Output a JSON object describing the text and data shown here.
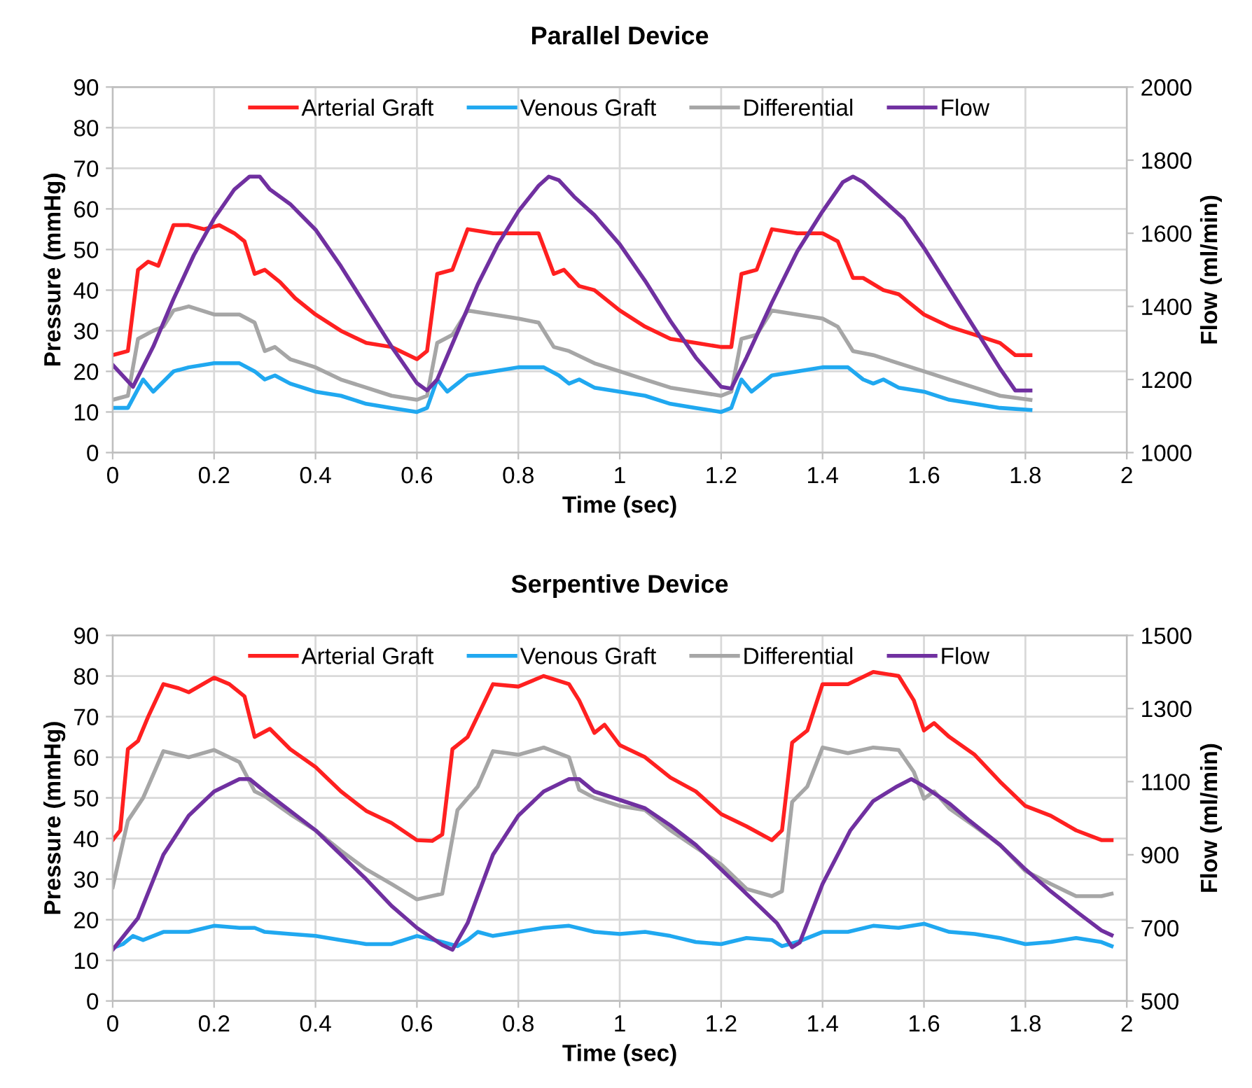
{
  "chart_data": [
    {
      "type": "line",
      "title": "Parallel Device",
      "xlabel": "Time (sec)",
      "ylabel": "Pressure (mmHg)",
      "y2label": "Flow (ml/min)",
      "xlim": [
        0,
        2
      ],
      "xticks": [
        0,
        0.2,
        0.4,
        0.6,
        0.8,
        1,
        1.2,
        1.4,
        1.6,
        1.8,
        2
      ],
      "ylim": [
        0,
        90
      ],
      "yticks": [
        0,
        10,
        20,
        30,
        40,
        50,
        60,
        70,
        80,
        90
      ],
      "y2lim": [
        1000,
        2000
      ],
      "y2ticks": [
        1000,
        1200,
        1400,
        1600,
        1800,
        2000
      ],
      "grid": true,
      "legend": "top",
      "marker": "none",
      "line_style": "solid",
      "series": [
        {
          "name": "Arterial Graft",
          "color": "#ff2020",
          "x": [
            0,
            0.03,
            0.05,
            0.07,
            0.09,
            0.12,
            0.15,
            0.18,
            0.21,
            0.24,
            0.26,
            0.28,
            0.3,
            0.33,
            0.36,
            0.4,
            0.45,
            0.5,
            0.55,
            0.6,
            0.62,
            0.64,
            0.67,
            0.7,
            0.75,
            0.8,
            0.84,
            0.87,
            0.89,
            0.92,
            0.95,
            1.0,
            1.05,
            1.1,
            1.15,
            1.2,
            1.22,
            1.24,
            1.27,
            1.3,
            1.35,
            1.4,
            1.43,
            1.46,
            1.48,
            1.52,
            1.55,
            1.6,
            1.65,
            1.7,
            1.75,
            1.78,
            1.81
          ],
          "values": [
            24,
            25,
            45,
            47,
            46,
            56,
            56,
            55,
            56,
            54,
            52,
            44,
            45,
            42,
            38,
            34,
            30,
            27,
            26,
            23,
            25,
            44,
            45,
            55,
            54,
            54,
            54,
            44,
            45,
            41,
            40,
            35,
            31,
            28,
            27,
            26,
            26,
            44,
            45,
            55,
            54,
            54,
            52,
            43,
            43,
            40,
            39,
            34,
            31,
            29,
            27,
            24,
            24
          ]
        },
        {
          "name": "Venous Graft",
          "color": "#20a8f0",
          "x": [
            0,
            0.03,
            0.06,
            0.08,
            0.12,
            0.15,
            0.2,
            0.25,
            0.28,
            0.3,
            0.32,
            0.35,
            0.4,
            0.45,
            0.5,
            0.55,
            0.6,
            0.62,
            0.64,
            0.66,
            0.7,
            0.75,
            0.8,
            0.85,
            0.88,
            0.9,
            0.92,
            0.95,
            1.0,
            1.05,
            1.1,
            1.15,
            1.2,
            1.22,
            1.24,
            1.26,
            1.3,
            1.35,
            1.4,
            1.45,
            1.48,
            1.5,
            1.52,
            1.55,
            1.6,
            1.65,
            1.7,
            1.75,
            1.81
          ],
          "values": [
            11,
            11,
            18,
            15,
            20,
            21,
            22,
            22,
            20,
            18,
            19,
            17,
            15,
            14,
            12,
            11,
            10,
            11,
            18,
            15,
            19,
            20,
            21,
            21,
            19,
            17,
            18,
            16,
            15,
            14,
            12,
            11,
            10,
            11,
            18,
            15,
            19,
            20,
            21,
            21,
            18,
            17,
            18,
            16,
            15,
            13,
            12,
            11,
            10.5
          ]
        },
        {
          "name": "Differential",
          "color": "#a6a6a6",
          "x": [
            0,
            0.03,
            0.05,
            0.08,
            0.1,
            0.12,
            0.15,
            0.2,
            0.25,
            0.28,
            0.3,
            0.32,
            0.35,
            0.4,
            0.45,
            0.5,
            0.55,
            0.6,
            0.62,
            0.64,
            0.67,
            0.7,
            0.75,
            0.8,
            0.84,
            0.87,
            0.9,
            0.95,
            1.0,
            1.05,
            1.1,
            1.15,
            1.2,
            1.22,
            1.24,
            1.27,
            1.3,
            1.35,
            1.4,
            1.43,
            1.46,
            1.5,
            1.55,
            1.6,
            1.65,
            1.7,
            1.75,
            1.81
          ],
          "values": [
            13,
            14,
            28,
            30,
            31,
            35,
            36,
            34,
            34,
            32,
            25,
            26,
            23,
            21,
            18,
            16,
            14,
            13,
            14,
            27,
            29,
            35,
            34,
            33,
            32,
            26,
            25,
            22,
            20,
            18,
            16,
            15,
            14,
            15,
            28,
            29,
            35,
            34,
            33,
            31,
            25,
            24,
            22,
            20,
            18,
            16,
            14,
            13
          ]
        },
        {
          "name": "Flow",
          "color": "#7030a0",
          "axis": "y2",
          "x": [
            0,
            0.04,
            0.08,
            0.12,
            0.16,
            0.2,
            0.24,
            0.27,
            0.29,
            0.31,
            0.35,
            0.4,
            0.45,
            0.5,
            0.55,
            0.6,
            0.62,
            0.64,
            0.68,
            0.72,
            0.76,
            0.8,
            0.84,
            0.86,
            0.88,
            0.91,
            0.95,
            1.0,
            1.05,
            1.1,
            1.15,
            1.2,
            1.22,
            1.25,
            1.3,
            1.35,
            1.4,
            1.44,
            1.46,
            1.48,
            1.52,
            1.56,
            1.6,
            1.65,
            1.7,
            1.75,
            1.78,
            1.81
          ],
          "values": [
            1240,
            1180,
            1290,
            1420,
            1540,
            1640,
            1720,
            1755,
            1755,
            1720,
            1680,
            1610,
            1510,
            1400,
            1290,
            1190,
            1170,
            1200,
            1330,
            1460,
            1570,
            1660,
            1730,
            1755,
            1745,
            1700,
            1650,
            1570,
            1470,
            1360,
            1260,
            1180,
            1175,
            1260,
            1410,
            1550,
            1660,
            1740,
            1755,
            1740,
            1690,
            1640,
            1560,
            1450,
            1340,
            1230,
            1170,
            1170
          ]
        }
      ]
    },
    {
      "type": "line",
      "title": "Serpentive Device",
      "xlabel": "Time (sec)",
      "ylabel": "Pressure (mmHg)",
      "y2label": "Flow (ml/min)",
      "xlim": [
        0,
        2
      ],
      "xticks": [
        0,
        0.2,
        0.4,
        0.6,
        0.8,
        1,
        1.2,
        1.4,
        1.6,
        1.8,
        2
      ],
      "ylim": [
        0,
        90
      ],
      "yticks": [
        0,
        10,
        20,
        30,
        40,
        50,
        60,
        70,
        80,
        90
      ],
      "y2lim": [
        500,
        1500
      ],
      "y2ticks": [
        500,
        700,
        900,
        1100,
        1300,
        1500
      ],
      "grid": true,
      "legend": "top",
      "marker": "none",
      "line_style": "solid",
      "series": [
        {
          "name": "Arterial Graft",
          "color": "#ff2020",
          "x": [
            0,
            0.015,
            0.03,
            0.05,
            0.07,
            0.1,
            0.13,
            0.15,
            0.2,
            0.23,
            0.26,
            0.28,
            0.31,
            0.35,
            0.4,
            0.45,
            0.5,
            0.55,
            0.6,
            0.63,
            0.65,
            0.67,
            0.7,
            0.75,
            0.8,
            0.85,
            0.9,
            0.92,
            0.95,
            0.97,
            1.0,
            1.05,
            1.1,
            1.15,
            1.2,
            1.25,
            1.3,
            1.32,
            1.34,
            1.37,
            1.4,
            1.45,
            1.5,
            1.55,
            1.58,
            1.6,
            1.62,
            1.65,
            1.7,
            1.75,
            1.8,
            1.85,
            1.9,
            1.95,
            1.97
          ],
          "values": [
            39.6,
            42,
            62,
            64,
            70,
            78,
            77,
            76,
            79.6,
            78,
            75,
            65,
            67,
            62,
            57.6,
            51.6,
            46.8,
            43.8,
            39.6,
            39.4,
            41,
            62,
            65,
            78,
            77.4,
            80,
            78,
            74,
            66,
            68,
            63,
            60,
            55,
            51.6,
            46,
            43,
            39.6,
            42,
            63.6,
            66.6,
            78,
            78,
            81,
            80,
            74,
            66.6,
            68.4,
            65,
            60.6,
            54,
            48,
            45.6,
            42,
            39.6,
            39.6
          ]
        },
        {
          "name": "Venous Graft",
          "color": "#20a8f0",
          "x": [
            0,
            0.02,
            0.04,
            0.06,
            0.1,
            0.15,
            0.2,
            0.25,
            0.28,
            0.3,
            0.35,
            0.4,
            0.45,
            0.5,
            0.55,
            0.6,
            0.65,
            0.68,
            0.7,
            0.72,
            0.75,
            0.8,
            0.85,
            0.9,
            0.95,
            1.0,
            1.05,
            1.1,
            1.15,
            1.2,
            1.25,
            1.3,
            1.32,
            1.35,
            1.4,
            1.45,
            1.5,
            1.55,
            1.6,
            1.65,
            1.7,
            1.75,
            1.8,
            1.85,
            1.9,
            1.95,
            1.97
          ],
          "values": [
            13,
            14,
            16,
            15,
            17,
            17,
            18.5,
            18,
            18,
            17,
            16.5,
            16,
            15,
            14,
            14,
            16,
            14.5,
            13.5,
            15,
            17,
            16,
            17,
            18,
            18.5,
            17,
            16.5,
            17,
            16,
            14.5,
            14,
            15.5,
            15,
            13.5,
            14.5,
            17,
            17,
            18.5,
            18,
            19,
            17,
            16.5,
            15.5,
            14,
            14.5,
            15.5,
            14.5,
            13.5
          ]
        },
        {
          "name": "Differential",
          "color": "#a6a6a6",
          "x": [
            0,
            0.03,
            0.06,
            0.1,
            0.15,
            0.2,
            0.25,
            0.28,
            0.3,
            0.35,
            0.4,
            0.45,
            0.5,
            0.55,
            0.6,
            0.65,
            0.68,
            0.72,
            0.75,
            0.8,
            0.85,
            0.9,
            0.92,
            0.95,
            1.0,
            1.05,
            1.1,
            1.15,
            1.2,
            1.25,
            1.3,
            1.32,
            1.34,
            1.37,
            1.4,
            1.45,
            1.5,
            1.55,
            1.58,
            1.6,
            1.62,
            1.65,
            1.7,
            1.75,
            1.8,
            1.85,
            1.9,
            1.95,
            1.97
          ],
          "values": [
            28,
            44.4,
            50,
            61.5,
            60,
            61.8,
            58.8,
            51.6,
            50.4,
            46,
            42,
            37,
            32.4,
            28.8,
            25,
            26.4,
            47,
            52.8,
            61.5,
            60.6,
            62.4,
            60,
            52,
            50,
            48,
            47,
            42,
            37.8,
            33.6,
            27.6,
            25.8,
            27,
            49,
            52.8,
            62.4,
            61,
            62.4,
            61.8,
            56.4,
            49.8,
            51.6,
            47.4,
            43,
            38.4,
            32,
            28.8,
            25.8,
            25.8,
            26.4
          ]
        },
        {
          "name": "Flow",
          "color": "#7030a0",
          "axis": "y2",
          "x": [
            0,
            0.05,
            0.1,
            0.15,
            0.2,
            0.25,
            0.27,
            0.3,
            0.35,
            0.4,
            0.45,
            0.5,
            0.55,
            0.6,
            0.65,
            0.67,
            0.7,
            0.75,
            0.8,
            0.85,
            0.9,
            0.92,
            0.95,
            1.0,
            1.05,
            1.1,
            1.15,
            1.2,
            1.25,
            1.31,
            1.34,
            1.355,
            1.4,
            1.455,
            1.5,
            1.547,
            1.575,
            1.6,
            1.65,
            1.69,
            1.75,
            1.8,
            1.85,
            1.905,
            1.95,
            1.97
          ],
          "values": [
            640,
            727,
            900,
            1007,
            1073,
            1107,
            1107,
            1073,
            1020,
            967,
            900,
            833,
            760,
            700,
            653,
            640,
            713,
            900,
            1007,
            1073,
            1107,
            1107,
            1073,
            1050,
            1027,
            980,
            927,
            860,
            793,
            713,
            647,
            660,
            820,
            967,
            1047,
            1087,
            1107,
            1087,
            1040,
            993,
            927,
            860,
            800,
            740,
            693,
            680
          ]
        }
      ]
    }
  ]
}
